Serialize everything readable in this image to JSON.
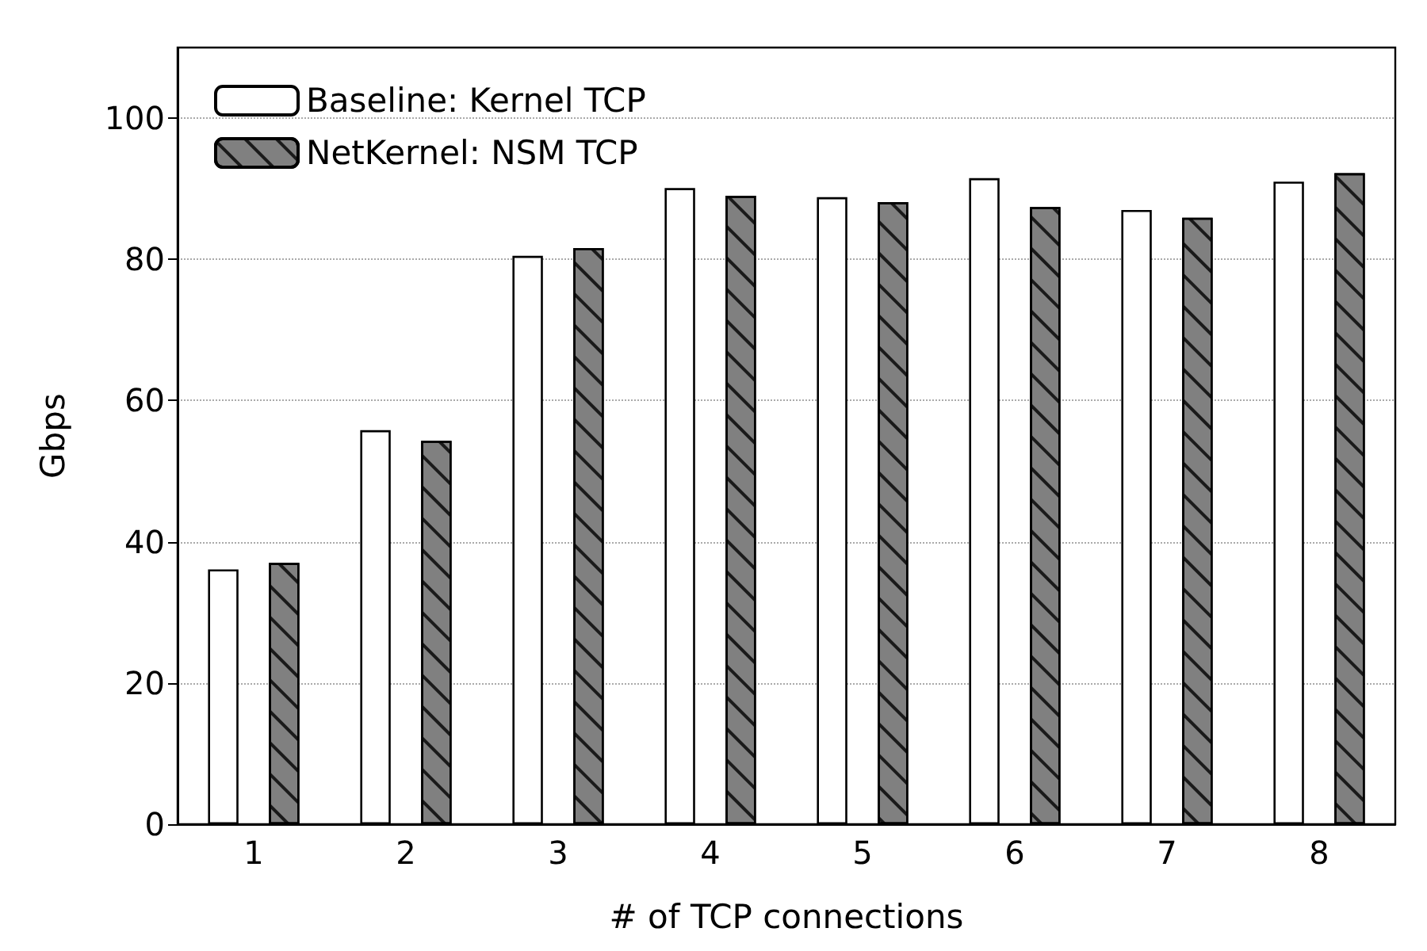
{
  "chart_data": {
    "type": "bar",
    "xlabel": "# of TCP connections",
    "ylabel": "Gbps",
    "categories": [
      "1",
      "2",
      "3",
      "4",
      "5",
      "6",
      "7",
      "8"
    ],
    "series": [
      {
        "name": "Baseline: Kernel TCP",
        "color": "#ffffff",
        "values": [
          36.1,
          55.8,
          80.5,
          90.1,
          88.8,
          91.5,
          87.0,
          91.0
        ]
      },
      {
        "name": "NetKernel: NSM TCP",
        "color": "#808080",
        "values": [
          37.0,
          54.3,
          81.6,
          89.0,
          88.1,
          87.4,
          85.9,
          92.2
        ]
      }
    ],
    "ylim": [
      0,
      110
    ],
    "yticks": [
      0,
      20,
      40,
      60,
      80,
      100
    ],
    "grid": "y",
    "legend": "top left"
  }
}
